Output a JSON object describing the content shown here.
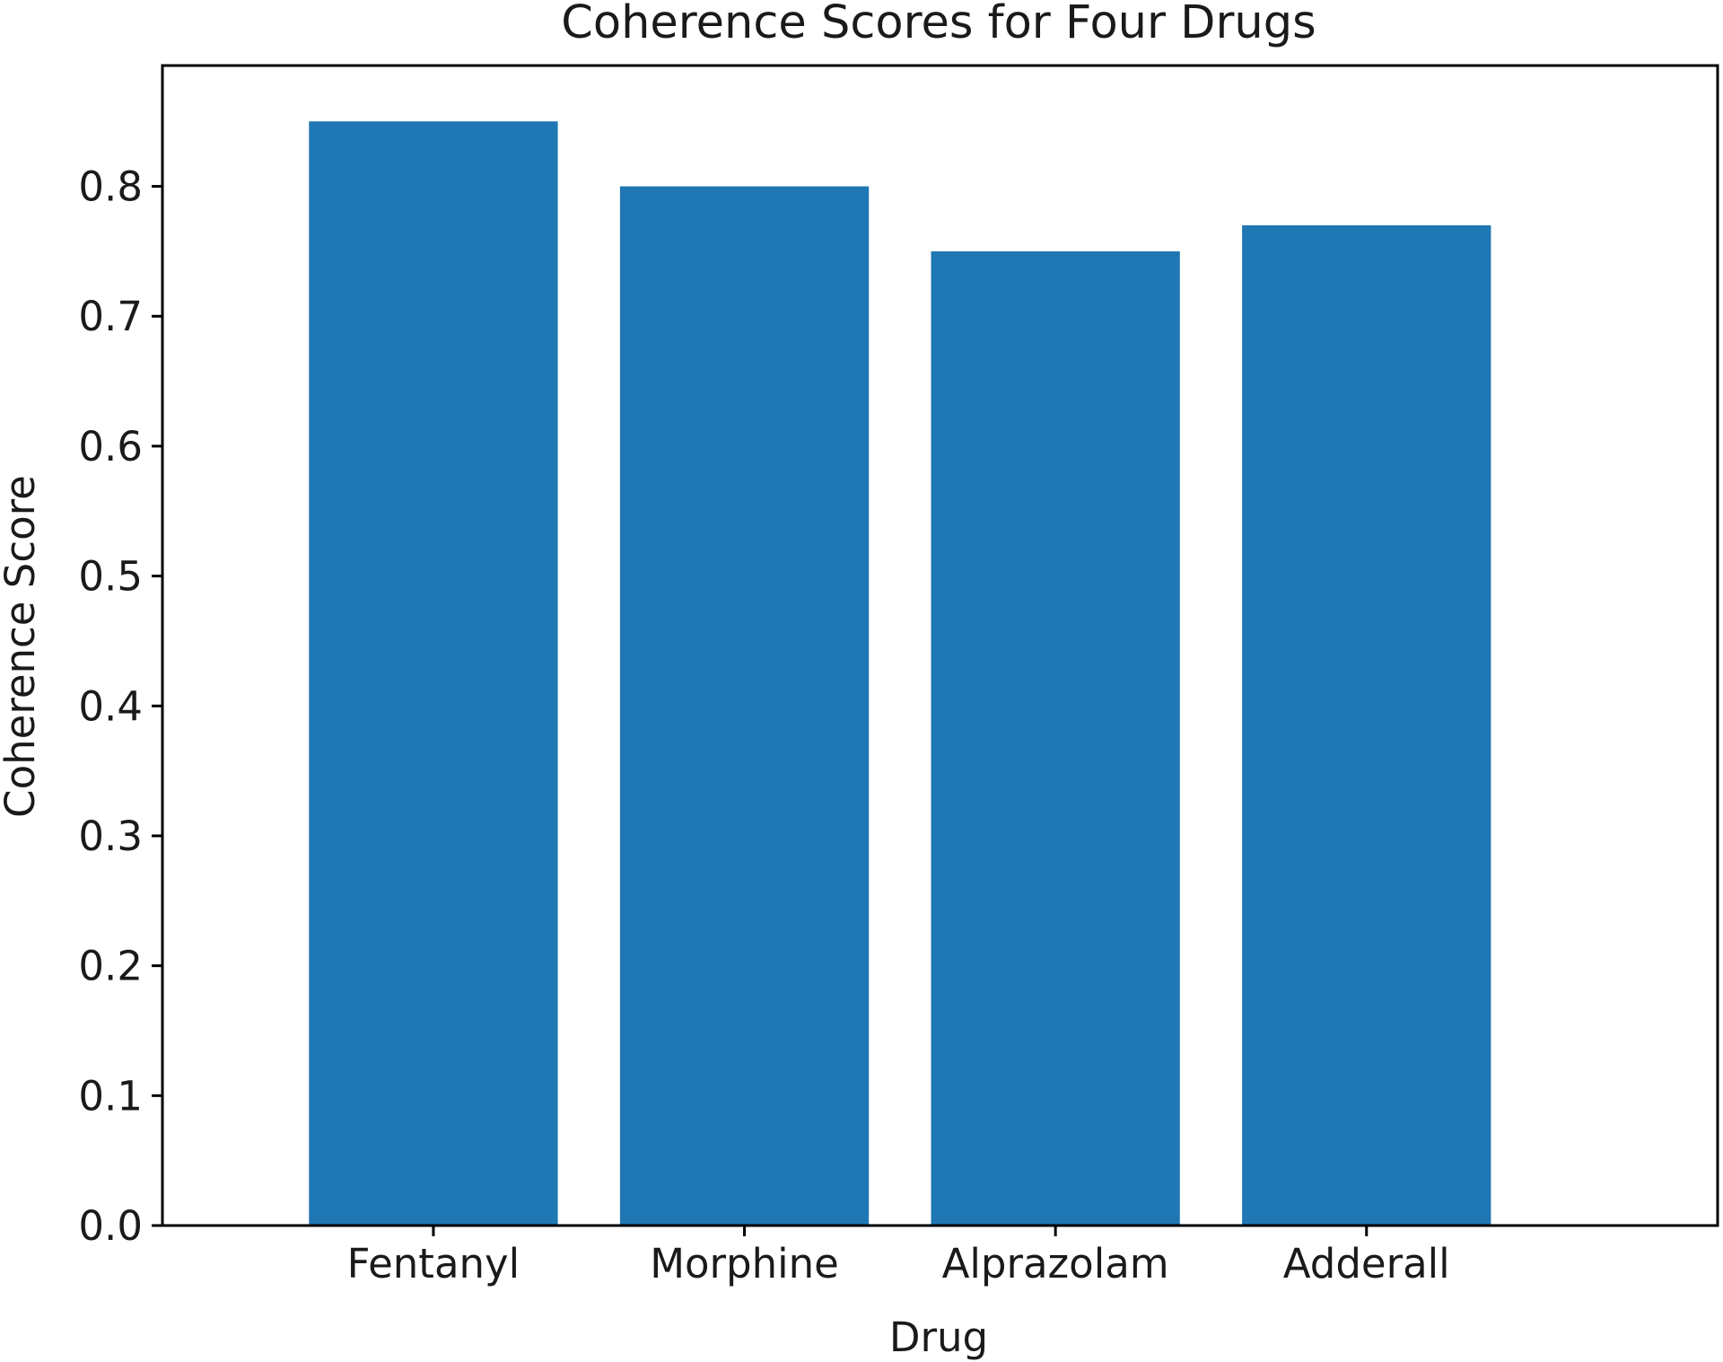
{
  "chart_data": {
    "type": "bar",
    "title": "Coherence Scores for Four Drugs",
    "xlabel": "Drug",
    "ylabel": "Coherence Score",
    "categories": [
      "Fentanyl",
      "Morphine",
      "Alprazolam",
      "Adderall"
    ],
    "values": [
      0.85,
      0.8,
      0.75,
      0.77
    ],
    "ylim": [
      0,
      0.893
    ],
    "yticks": [
      0.0,
      0.1,
      0.2,
      0.3,
      0.4,
      0.5,
      0.6,
      0.7,
      0.8
    ],
    "ytick_labels": [
      "0.0",
      "0.1",
      "0.2",
      "0.3",
      "0.4",
      "0.5",
      "0.6",
      "0.7",
      "0.8"
    ],
    "bar_color": "#1f77b4",
    "grid": false,
    "legend": "none"
  }
}
